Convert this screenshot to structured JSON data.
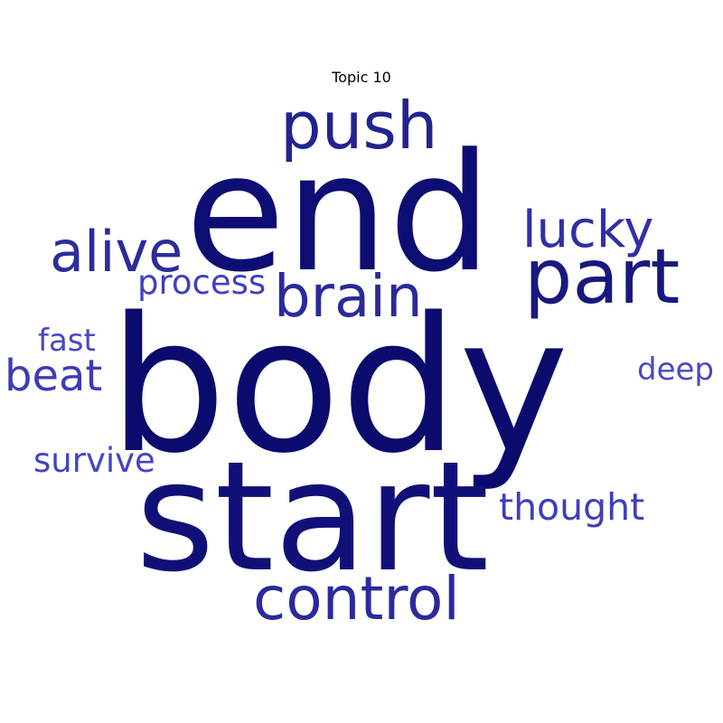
{
  "title": "Topic 10",
  "words": [
    {
      "text": "body",
      "color": "#0b0b6e"
    },
    {
      "text": "end",
      "color": "#0d0d74"
    },
    {
      "text": "start",
      "color": "#101078"
    },
    {
      "text": "push",
      "color": "#23238f"
    },
    {
      "text": "part",
      "color": "#18187f"
    },
    {
      "text": "brain",
      "color": "#2a2a9a"
    },
    {
      "text": "alive",
      "color": "#2c2c9c"
    },
    {
      "text": "lucky",
      "color": "#3030a6"
    },
    {
      "text": "control",
      "color": "#2a2a9e"
    },
    {
      "text": "process",
      "color": "#4040c0"
    },
    {
      "text": "beat",
      "color": "#3c3cb8"
    },
    {
      "text": "fast",
      "color": "#4646c6"
    },
    {
      "text": "deep",
      "color": "#4848c8"
    },
    {
      "text": "survive",
      "color": "#4444c4"
    },
    {
      "text": "thought",
      "color": "#3e3ebc"
    }
  ]
}
